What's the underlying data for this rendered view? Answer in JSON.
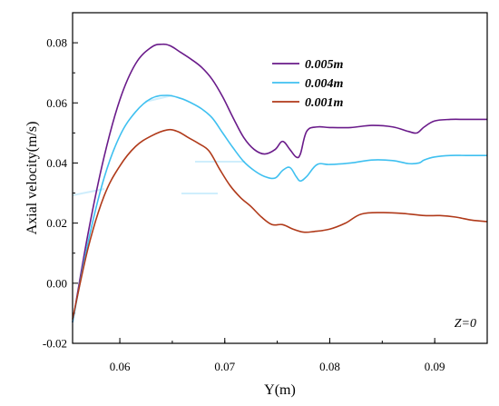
{
  "chart_data": {
    "type": "line",
    "xlabel": "Y(m)",
    "ylabel": "Axial velocity(m/s)",
    "xlim": [
      0.0555,
      0.095
    ],
    "ylim": [
      -0.02,
      0.09
    ],
    "xticks": [
      0.06,
      0.07,
      0.08,
      0.09
    ],
    "xtick_labels": [
      "0.06",
      "0.07",
      "0.08",
      "0.09"
    ],
    "yticks": [
      -0.02,
      0.0,
      0.02,
      0.04,
      0.06,
      0.08
    ],
    "ytick_labels": [
      "-0.02",
      "0.00",
      "0.02",
      "0.04",
      "0.06",
      "0.08"
    ],
    "legend_position": "top-right",
    "annotation": "Z=0",
    "series": [
      {
        "name": "0.005m",
        "color": "#6a1b8a",
        "x": [
          0.0555,
          0.057,
          0.0585,
          0.06,
          0.0615,
          0.063,
          0.064,
          0.0648,
          0.0658,
          0.0668,
          0.0678,
          0.0688,
          0.0698,
          0.0708,
          0.0718,
          0.0728,
          0.0738,
          0.0748,
          0.0755,
          0.0762,
          0.0768,
          0.0772,
          0.0778,
          0.0788,
          0.08,
          0.082,
          0.084,
          0.086,
          0.0875,
          0.0883,
          0.089,
          0.09,
          0.0915,
          0.093,
          0.095
        ],
        "y": [
          -0.013,
          0.017,
          0.042,
          0.061,
          0.073,
          0.0785,
          0.0795,
          0.079,
          0.0768,
          0.0745,
          0.0718,
          0.0678,
          0.062,
          0.055,
          0.0485,
          0.0445,
          0.043,
          0.0445,
          0.0472,
          0.0445,
          0.042,
          0.043,
          0.0505,
          0.052,
          0.0518,
          0.0518,
          0.0525,
          0.052,
          0.0505,
          0.05,
          0.052,
          0.054,
          0.0545,
          0.0545,
          0.0545
        ]
      },
      {
        "name": "0.004m",
        "color": "#3fc0f0",
        "x": [
          0.0555,
          0.057,
          0.0585,
          0.06,
          0.0615,
          0.063,
          0.0645,
          0.0658,
          0.0668,
          0.0678,
          0.0688,
          0.0698,
          0.0708,
          0.0718,
          0.0728,
          0.0738,
          0.0748,
          0.0755,
          0.0762,
          0.0768,
          0.0772,
          0.0778,
          0.0788,
          0.08,
          0.082,
          0.084,
          0.086,
          0.0875,
          0.0885,
          0.089,
          0.09,
          0.0915,
          0.093,
          0.095
        ],
        "y": [
          -0.013,
          0.014,
          0.035,
          0.049,
          0.057,
          0.0615,
          0.0625,
          0.0615,
          0.06,
          0.058,
          0.055,
          0.05,
          0.045,
          0.0405,
          0.0375,
          0.0355,
          0.035,
          0.0375,
          0.0385,
          0.0355,
          0.034,
          0.0355,
          0.0395,
          0.0395,
          0.04,
          0.041,
          0.0408,
          0.0398,
          0.04,
          0.041,
          0.042,
          0.0425,
          0.0425,
          0.0425
        ]
      },
      {
        "name": "0.001m",
        "color": "#b03a1a",
        "x": [
          0.0555,
          0.057,
          0.0585,
          0.06,
          0.0615,
          0.063,
          0.0645,
          0.0655,
          0.0665,
          0.0675,
          0.0685,
          0.0695,
          0.0705,
          0.0715,
          0.0725,
          0.0735,
          0.0745,
          0.0755,
          0.0765,
          0.0775,
          0.0785,
          0.08,
          0.0815,
          0.083,
          0.085,
          0.087,
          0.089,
          0.0905,
          0.092,
          0.0935,
          0.095
        ],
        "y": [
          -0.012,
          0.012,
          0.029,
          0.039,
          0.0455,
          0.049,
          0.051,
          0.0505,
          0.0485,
          0.0465,
          0.044,
          0.038,
          0.0325,
          0.0285,
          0.0255,
          0.022,
          0.0195,
          0.0195,
          0.018,
          0.017,
          0.0172,
          0.018,
          0.02,
          0.023,
          0.0235,
          0.0232,
          0.0225,
          0.0225,
          0.022,
          0.021,
          0.0205
        ]
      }
    ]
  }
}
